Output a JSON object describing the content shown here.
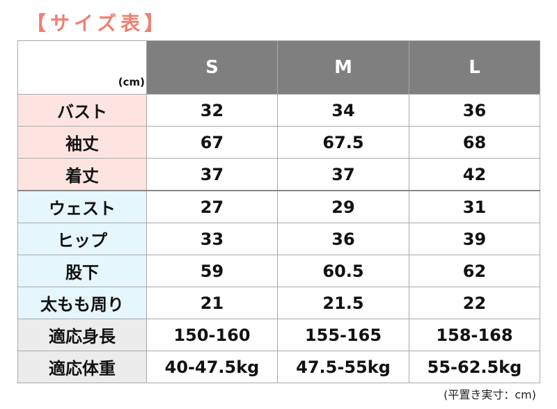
{
  "title": "【サイズ表】",
  "unit_label": "(cm)",
  "sizes": [
    "S",
    "M",
    "L"
  ],
  "rows": [
    {
      "label": "バスト",
      "group": "pink",
      "values": [
        "32",
        "34",
        "36"
      ]
    },
    {
      "label": "袖丈",
      "group": "pink",
      "values": [
        "67",
        "67.5",
        "68"
      ]
    },
    {
      "label": "着丈",
      "group": "pink",
      "values": [
        "37",
        "37",
        "42"
      ]
    },
    {
      "label": "ウェスト",
      "group": "blue",
      "values": [
        "27",
        "29",
        "31"
      ]
    },
    {
      "label": "ヒップ",
      "group": "blue",
      "values": [
        "33",
        "36",
        "39"
      ]
    },
    {
      "label": "股下",
      "group": "blue",
      "values": [
        "59",
        "60.5",
        "62"
      ]
    },
    {
      "label": "太もも周り",
      "group": "blue",
      "values": [
        "21",
        "21.5",
        "22"
      ]
    },
    {
      "label": "適応身長",
      "group": "grey",
      "values": [
        "150-160",
        "155-165",
        "158-168"
      ]
    },
    {
      "label": "適応体重",
      "group": "grey",
      "values": [
        "40-47.5kg",
        "47.5-55kg",
        "55-62.5kg"
      ]
    }
  ],
  "footnote": "(平置き実寸：cm)",
  "colors": {
    "title": "#f07f70",
    "header": "#7f7f7f",
    "pink": "#fde4e0",
    "blue": "#e5f6fd",
    "grey": "#ececec"
  }
}
